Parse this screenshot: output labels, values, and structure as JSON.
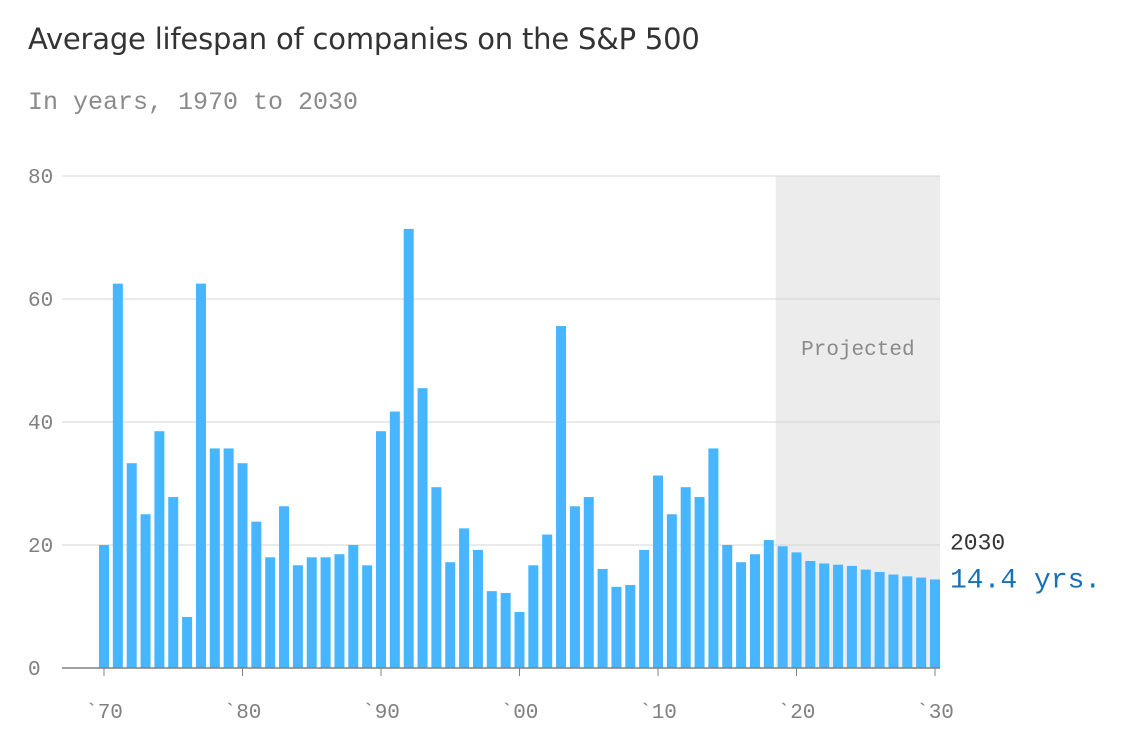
{
  "title": "Average lifespan of companies on the S&P 500",
  "subtitle": "In years, 1970 to 2030",
  "colors": {
    "bar": "#47b5ff",
    "grid": "#d5d5d5",
    "axis": "#808080",
    "projected_band": "#ececec",
    "annotation_value": "#1a6fb5",
    "annotation_year": "#333333"
  },
  "chart_data": {
    "type": "bar",
    "title": "Average lifespan of companies on the S&P 500",
    "subtitle": "In years, 1970 to 2030",
    "xlabel": "",
    "ylabel": "",
    "ylim": [
      0,
      80
    ],
    "yticks": [
      0,
      20,
      40,
      60,
      80
    ],
    "ytick_labels": [
      "0",
      "20",
      "40",
      "60",
      "80"
    ],
    "xtick_years": [
      1970,
      1980,
      1990,
      2000,
      2010,
      2020,
      2030
    ],
    "xtick_labels": [
      "`70",
      "`80",
      "`90",
      "`00",
      "`10",
      "`20",
      "`30"
    ],
    "grid": true,
    "projected": {
      "label": "Projected",
      "from_year": 2019,
      "to_year": 2030
    },
    "annotation": {
      "year_label": "2030",
      "value_label": "14.4 yrs."
    },
    "x": [
      1970,
      1971,
      1972,
      1973,
      1974,
      1975,
      1976,
      1977,
      1978,
      1979,
      1980,
      1981,
      1982,
      1983,
      1984,
      1985,
      1986,
      1987,
      1988,
      1989,
      1990,
      1991,
      1992,
      1993,
      1994,
      1995,
      1996,
      1997,
      1998,
      1999,
      2000,
      2001,
      2002,
      2003,
      2004,
      2005,
      2006,
      2007,
      2008,
      2009,
      2010,
      2011,
      2012,
      2013,
      2014,
      2015,
      2016,
      2017,
      2018,
      2019,
      2020,
      2021,
      2022,
      2023,
      2024,
      2025,
      2026,
      2027,
      2028,
      2029,
      2030
    ],
    "values": [
      20,
      62.5,
      33.3,
      25,
      38.5,
      27.8,
      8.3,
      62.5,
      35.7,
      35.7,
      33.3,
      23.8,
      18,
      26.3,
      16.7,
      18,
      18,
      18.5,
      20,
      16.7,
      38.5,
      41.7,
      71.4,
      45.5,
      29.4,
      17.2,
      22.7,
      19.2,
      12.5,
      12.2,
      9.1,
      16.7,
      21.7,
      55.6,
      26.3,
      27.8,
      16.1,
      13.2,
      13.5,
      19.2,
      31.3,
      25,
      29.4,
      27.8,
      35.7,
      20,
      17.2,
      18.5,
      20.8,
      19.8,
      18.8,
      17.4,
      17,
      16.8,
      16.6,
      16,
      15.6,
      15.2,
      14.9,
      14.7,
      14.4
    ]
  }
}
